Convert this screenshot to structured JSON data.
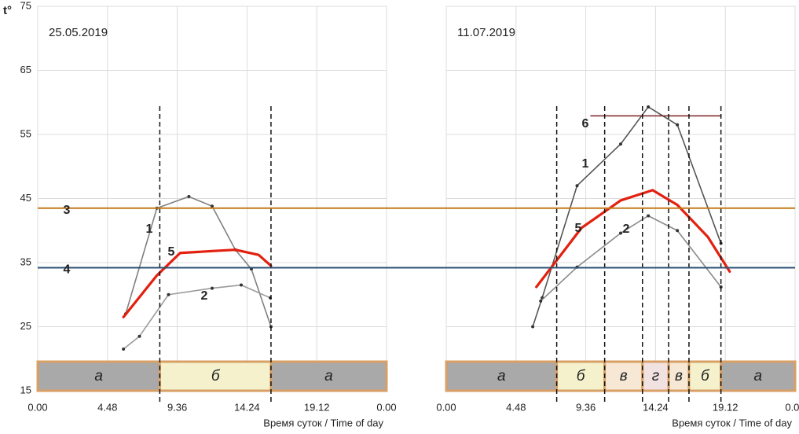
{
  "chart_data": [
    {
      "type": "line",
      "title": "25.05.2019",
      "y_label": "t°",
      "x_label": "Время суток / Time of day",
      "xlim": [
        0,
        24
      ],
      "xticks": [
        {
          "value": 0,
          "label": "0.00"
        },
        {
          "value": 4.8,
          "label": "4.48"
        },
        {
          "value": 9.6,
          "label": "9.36"
        },
        {
          "value": 14.4,
          "label": "14.24"
        },
        {
          "value": 19.2,
          "label": "19.12"
        },
        {
          "value": 24,
          "label": "0.00"
        }
      ],
      "ylim": [
        15,
        75
      ],
      "yticks": [
        15,
        25,
        35,
        45,
        55,
        65,
        75
      ],
      "grid": true,
      "hlines": [
        {
          "name": "3",
          "value": 43.5,
          "color": "#c47a1c"
        },
        {
          "name": "4",
          "value": 34.2,
          "color": "#2e5275"
        }
      ],
      "dividers": [
        8.4,
        16.05
      ],
      "periods": [
        "а",
        "б",
        "а"
      ],
      "period_colors": {
        "а": "#a9a9a9",
        "б": "#f4f1cc",
        "в": "#f6e8d4",
        "г": "#f1e1e1"
      },
      "series": [
        {
          "name": "1",
          "color": "#808080",
          "x": [
            6.05,
            8.2,
            10.4,
            12,
            13.6,
            14.7,
            16.05
          ],
          "values": [
            27,
            43.5,
            45.3,
            43.8,
            37,
            34,
            25
          ]
        },
        {
          "name": "2",
          "color": "#9a9a9a",
          "x": [
            5.9,
            7,
            9,
            12,
            14,
            16
          ],
          "values": [
            21.5,
            23.5,
            30,
            31,
            31.5,
            29.5
          ]
        },
        {
          "name": "5",
          "color": "#e3200f",
          "x": [
            5.9,
            8.2,
            9.8,
            12,
            13.6,
            15.2,
            16.05
          ],
          "values": [
            26.5,
            33,
            36.5,
            36.8,
            37,
            36.2,
            34.5
          ]
        }
      ]
    },
    {
      "type": "line",
      "title": "11.07.2019",
      "x_label": "Время суток / Time of day",
      "xlim": [
        0,
        24
      ],
      "xticks": [
        {
          "value": 0,
          "label": "0.00"
        },
        {
          "value": 4.8,
          "label": "4.48"
        },
        {
          "value": 9.6,
          "label": "9.36"
        },
        {
          "value": 14.4,
          "label": "14.24"
        },
        {
          "value": 19.2,
          "label": "19.12"
        },
        {
          "value": 24,
          "label": "0.00"
        }
      ],
      "ylim": [
        15,
        75
      ],
      "yticks": [
        15,
        25,
        35,
        45,
        55,
        65,
        75
      ],
      "grid": true,
      "dividers": [
        7.6,
        10.9,
        13.5,
        15.3,
        16.7,
        18.9
      ],
      "periods": [
        "а",
        "б",
        "в",
        "г",
        "в",
        "б",
        "а"
      ],
      "period_colors": {
        "а": "#a9a9a9",
        "б": "#f4f1cc",
        "в": "#f6e8d4",
        "г": "#f1e1e1"
      },
      "series": [
        {
          "name": "1",
          "color": "#555555",
          "x": [
            5.95,
            6.6,
            9,
            12,
            13.9,
            15.9,
            18.9
          ],
          "values": [
            25,
            29.5,
            47,
            53.5,
            59.3,
            56.5,
            38
          ]
        },
        {
          "name": "2",
          "color": "#8a8a8a",
          "x": [
            6.5,
            9,
            12,
            13.9,
            15.9,
            18.9
          ],
          "values": [
            29,
            34.3,
            39.6,
            42.3,
            40,
            31.2
          ]
        },
        {
          "name": "5",
          "color": "#e3200f",
          "x": [
            6.2,
            9.3,
            12,
            14.2,
            15.9,
            18,
            19.5
          ],
          "values": [
            31.2,
            40.4,
            44.7,
            46.3,
            44,
            39,
            33.6
          ]
        },
        {
          "name": "6",
          "color": "#7a2020",
          "x": [
            9.95,
            18.9
          ],
          "values": [
            57.9,
            57.9
          ]
        }
      ]
    }
  ]
}
